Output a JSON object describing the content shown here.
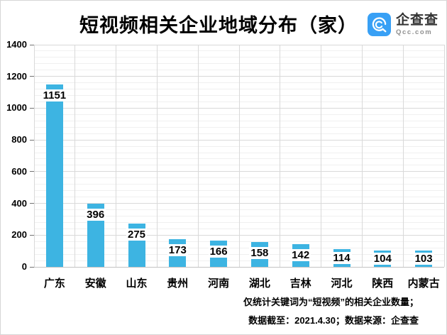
{
  "header": {
    "title": "短视频相关企业地域分布（家）",
    "logo": {
      "name": "企查查",
      "domain": "Qcc.com",
      "brand_color": "#38a0f5"
    }
  },
  "chart_data": {
    "type": "bar",
    "title": "短视频相关企业地域分布（家）",
    "categories": [
      "广东",
      "安徽",
      "山东",
      "贵州",
      "河南",
      "湖北",
      "吉林",
      "河北",
      "陕西",
      "内蒙古"
    ],
    "values": [
      1151,
      396,
      275,
      173,
      166,
      158,
      142,
      114,
      104,
      103
    ],
    "xlabel": "",
    "ylabel": "",
    "ylim": [
      0,
      1400
    ],
    "y_ticks": [
      0,
      200,
      400,
      600,
      800,
      1000,
      1200,
      1400
    ],
    "minor_unit": 40,
    "bar_color": "#3db4e2",
    "major_grid_color": "#d9d9d9",
    "minor_grid_color": "#f0f0f0",
    "axis_line_color": "#c2c2c2",
    "tick_color": "#737373",
    "grid": "on",
    "legend": "none",
    "data_labels": "inside-end-white-chip"
  },
  "footnotes": {
    "line1": "仅统计关键词为“短视频”的相关企业数量；",
    "line2": "数据截至：2021.4.30；数据来源：企查查"
  }
}
